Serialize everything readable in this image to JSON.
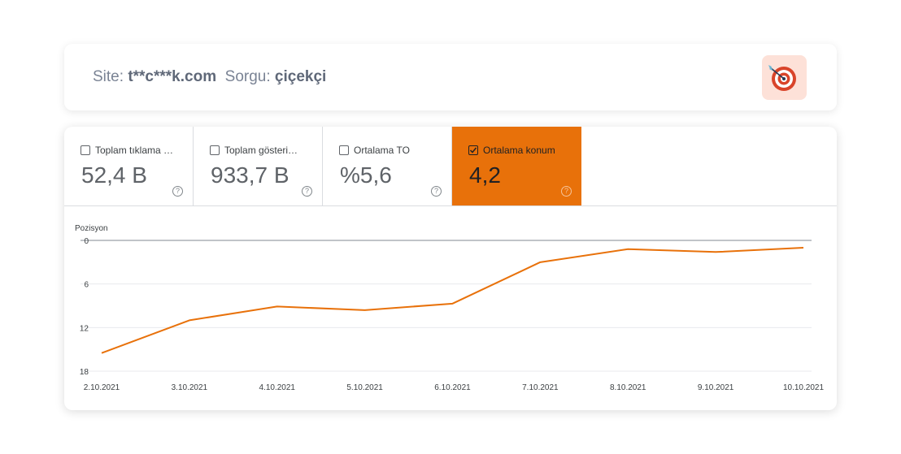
{
  "header": {
    "site_label": "Site:",
    "site_value": "t**c***k.com",
    "query_label": "Sorgu:",
    "query_value": "çiçekçi",
    "badge_icon": "target-icon"
  },
  "metrics": [
    {
      "label": "Toplam tıklama sayısı",
      "value": "52,4 B",
      "checked": false
    },
    {
      "label": "Toplam gösterim sayısı",
      "value": "933,7 B",
      "checked": false
    },
    {
      "label": "Ortalama TO",
      "value": "%5,6",
      "checked": false
    },
    {
      "label": "Ortalama konum",
      "value": "4,2",
      "checked": true
    }
  ],
  "help_glyph": "?",
  "colors": {
    "accent": "#e8710a",
    "line": "#e8710a",
    "grid": "#e8eaed",
    "badge_bg": "#fde1d8"
  },
  "chart_data": {
    "type": "line",
    "ylabel": "Pozisyon",
    "y_inverted": true,
    "ylim": [
      0,
      18
    ],
    "yticks": [
      "0",
      "6",
      "12",
      "18"
    ],
    "x": [
      "2.10.2021",
      "3.10.2021",
      "4.10.2021",
      "5.10.2021",
      "6.10.2021",
      "7.10.2021",
      "8.10.2021",
      "9.10.2021",
      "10.10.2021"
    ],
    "series": [
      {
        "values": [
          15.5,
          11.0,
          9.1,
          9.6,
          8.7,
          3.0,
          1.2,
          1.6,
          1.0
        ]
      }
    ],
    "grid": true
  }
}
